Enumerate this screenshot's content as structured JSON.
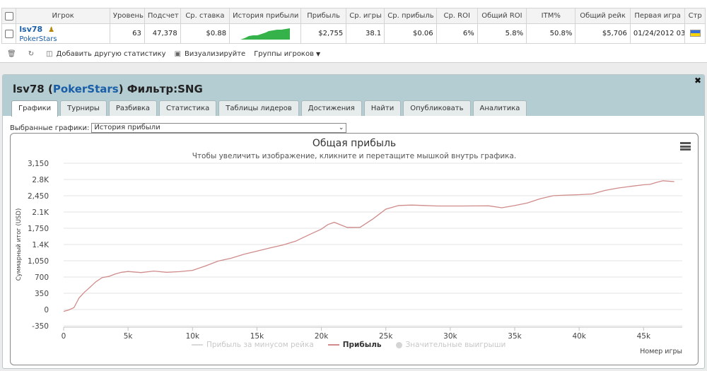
{
  "stats_table": {
    "headers": [
      "Игрок",
      "Уровень",
      "Подсчет",
      "Ср. ставка",
      "История прибыли",
      "Прибыль",
      "Ср. игры",
      "Ср. прибыль",
      "Ср. ROI",
      "Общий ROI",
      "ITM%",
      "Общий рейк",
      "Первая игра",
      "Стр"
    ],
    "row": {
      "player_name": "lsv78",
      "site": "PokerStars",
      "level": "63",
      "count": "47,378",
      "avg_stake": "$0.88",
      "profit": "$2,755",
      "avg_games": "38.1",
      "avg_profit": "$0.06",
      "avg_roi": "6%",
      "total_roi": "5.8%",
      "itm": "50.8%",
      "total_rake": "$5,706",
      "first_game": "01/24/2012 03"
    }
  },
  "toolbar": {
    "add_stats": "Добавить другую статистику",
    "visualize": "Визуализируйте",
    "groups": "Группы игроков"
  },
  "panel": {
    "player": "lsv78",
    "site": "PokerStars",
    "filter": "Фильтр:SNG",
    "tabs": [
      "Графики",
      "Турниры",
      "Разбивка",
      "Статистика",
      "Таблицы лидеров",
      "Достижения",
      "Найти",
      "Опубликовать",
      "Аналитика"
    ],
    "selected_label": "Выбранные графики:",
    "selected_value": "История прибыли"
  },
  "chart_data": {
    "type": "line",
    "title": "Общая прибыль",
    "subtitle": "Чтобы увеличить изображение, кликните и перетащите мышкой внутрь графика.",
    "ylabel": "Суммарный итог (USD)",
    "xlabel": "Номер игры",
    "y_ticks": [
      "3,150",
      "2.8K",
      "2,450",
      "2.1K",
      "1,750",
      "1.4K",
      "1,050",
      "700",
      "350",
      "0",
      "-350"
    ],
    "x_ticks": [
      "0",
      "5k",
      "10k",
      "15k",
      "20k",
      "25k",
      "30k",
      "35k",
      "40k",
      "45k"
    ],
    "ylim": [
      -350,
      3150
    ],
    "xlim": [
      0,
      47378
    ],
    "series": [
      {
        "name": "Прибыль",
        "color": "#d08b8b",
        "x": [
          0,
          400,
          800,
          1200,
          1600,
          2000,
          2500,
          3000,
          3500,
          4000,
          4500,
          5000,
          6000,
          7000,
          8000,
          9000,
          10000,
          11000,
          12000,
          13000,
          14000,
          15000,
          16000,
          17000,
          18000,
          19000,
          20000,
          20500,
          21000,
          22000,
          23000,
          24000,
          25000,
          26000,
          27000,
          28000,
          29000,
          30000,
          31000,
          32000,
          33000,
          34000,
          35000,
          36000,
          37000,
          38000,
          39000,
          40000,
          41000,
          42000,
          43000,
          44000,
          45000,
          45500,
          46000,
          46500,
          47378
        ],
        "y": [
          -40,
          -20,
          30,
          250,
          380,
          480,
          600,
          680,
          700,
          760,
          810,
          830,
          800,
          820,
          790,
          810,
          850,
          950,
          1050,
          1100,
          1180,
          1250,
          1330,
          1400,
          1480,
          1600,
          1720,
          1820,
          1880,
          1780,
          1780,
          1950,
          2150,
          2230,
          2250,
          2250,
          2240,
          2230,
          2220,
          2220,
          2230,
          2200,
          2250,
          2300,
          2380,
          2440,
          2460,
          2480,
          2500,
          2570,
          2610,
          2640,
          2680,
          2700,
          2750,
          2780,
          2755
        ]
      }
    ],
    "legend": [
      {
        "label": "Прибыль за минусом рейка",
        "active": false
      },
      {
        "label": "Прибыль",
        "active": true
      },
      {
        "label": "Значительные выигрыши",
        "active": false
      }
    ]
  }
}
